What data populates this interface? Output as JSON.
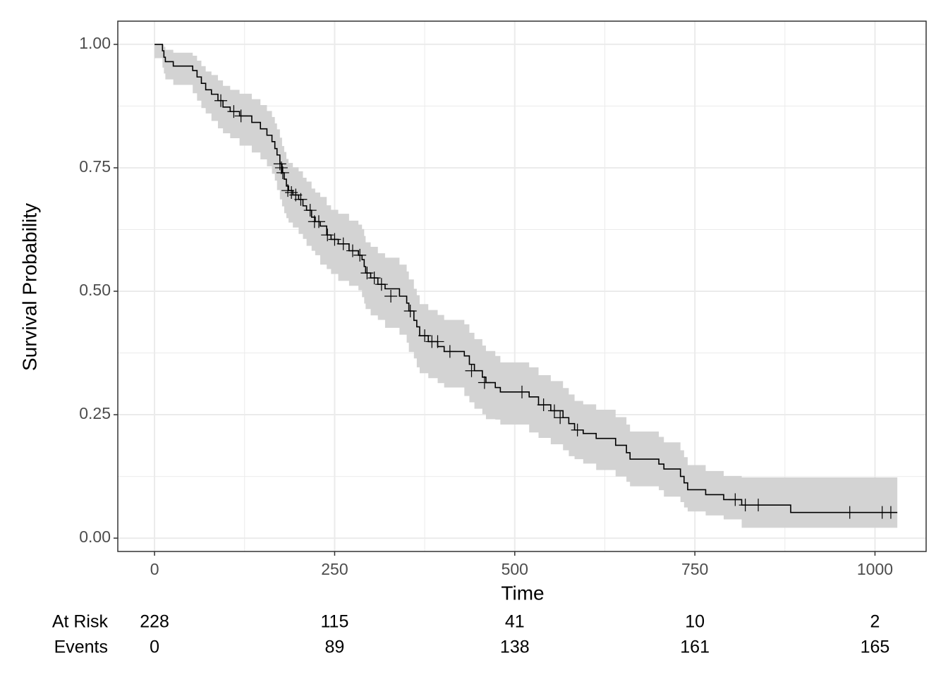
{
  "chart_data": {
    "type": "km",
    "xlabel": "Time",
    "ylabel": "Survival Probability",
    "xlim": [
      -51,
      1071
    ],
    "ylim": [
      -0.027,
      1.047
    ],
    "xticks": [
      0,
      250,
      500,
      750,
      1000
    ],
    "xminor": [
      125,
      375,
      625,
      875
    ],
    "yticks": [
      {
        "value": 0,
        "label": "0.00"
      },
      {
        "value": 0.25,
        "label": "0.25"
      },
      {
        "value": 0.5,
        "label": "0.50"
      },
      {
        "value": 0.75,
        "label": "0.75"
      },
      {
        "value": 1,
        "label": "1.00"
      }
    ],
    "yminor": [
      0.125,
      0.375,
      0.625,
      0.875
    ],
    "grid": true,
    "color": "#000000",
    "band_color": "#d3d3d3",
    "x": [
      0,
      11,
      13,
      15,
      26,
      53,
      59,
      65,
      71,
      79,
      88,
      95,
      105,
      118,
      135,
      147,
      156,
      163,
      167,
      170,
      174,
      177,
      180,
      183,
      186,
      192,
      200,
      206,
      211,
      218,
      223,
      230,
      239,
      245,
      255,
      270,
      283,
      288,
      291,
      293,
      300,
      310,
      320,
      340,
      350,
      353,
      360,
      364,
      368,
      380,
      393,
      402,
      430,
      437,
      444,
      455,
      460,
      473,
      480,
      520,
      533,
      550,
      567,
      575,
      583,
      595,
      613,
      640,
      655,
      660,
      700,
      707,
      730,
      735,
      740,
      765,
      790,
      815,
      883,
      1031
    ],
    "values": [
      1.0,
      0.987,
      0.974,
      0.965,
      0.956,
      0.947,
      0.934,
      0.921,
      0.908,
      0.899,
      0.886,
      0.873,
      0.864,
      0.855,
      0.842,
      0.829,
      0.816,
      0.803,
      0.789,
      0.776,
      0.758,
      0.74,
      0.727,
      0.713,
      0.704,
      0.695,
      0.686,
      0.673,
      0.664,
      0.65,
      0.641,
      0.632,
      0.614,
      0.605,
      0.596,
      0.582,
      0.573,
      0.564,
      0.55,
      0.537,
      0.527,
      0.514,
      0.505,
      0.49,
      0.476,
      0.46,
      0.441,
      0.428,
      0.41,
      0.398,
      0.388,
      0.378,
      0.369,
      0.352,
      0.339,
      0.326,
      0.315,
      0.305,
      0.296,
      0.286,
      0.27,
      0.258,
      0.244,
      0.232,
      0.219,
      0.212,
      0.202,
      0.188,
      0.173,
      0.16,
      0.15,
      0.14,
      0.125,
      0.112,
      0.098,
      0.088,
      0.078,
      0.067,
      0.052,
      0.052
    ],
    "lower": [
      1.0,
      0.972,
      0.953,
      0.941,
      0.929,
      0.918,
      0.901,
      0.886,
      0.871,
      0.86,
      0.845,
      0.83,
      0.82,
      0.81,
      0.795,
      0.781,
      0.767,
      0.753,
      0.738,
      0.724,
      0.705,
      0.686,
      0.672,
      0.658,
      0.648,
      0.639,
      0.629,
      0.616,
      0.606,
      0.592,
      0.582,
      0.573,
      0.554,
      0.545,
      0.535,
      0.521,
      0.511,
      0.502,
      0.488,
      0.475,
      0.464,
      0.451,
      0.442,
      0.426,
      0.412,
      0.396,
      0.377,
      0.364,
      0.346,
      0.334,
      0.324,
      0.314,
      0.305,
      0.288,
      0.275,
      0.262,
      0.251,
      0.241,
      0.24,
      0.23,
      0.214,
      0.203,
      0.19,
      0.178,
      0.166,
      0.16,
      0.151,
      0.138,
      0.125,
      0.114,
      0.105,
      0.097,
      0.084,
      0.073,
      0.062,
      0.054,
      0.046,
      0.038,
      0.021,
      0.021
    ],
    "upper": [
      1.0,
      1.0,
      0.995,
      0.989,
      0.983,
      0.977,
      0.967,
      0.956,
      0.945,
      0.938,
      0.927,
      0.916,
      0.908,
      0.9,
      0.889,
      0.877,
      0.865,
      0.853,
      0.84,
      0.828,
      0.811,
      0.794,
      0.782,
      0.768,
      0.76,
      0.751,
      0.743,
      0.73,
      0.722,
      0.708,
      0.7,
      0.691,
      0.674,
      0.665,
      0.657,
      0.643,
      0.635,
      0.626,
      0.612,
      0.599,
      0.59,
      0.577,
      0.568,
      0.554,
      0.54,
      0.524,
      0.505,
      0.492,
      0.474,
      0.462,
      0.452,
      0.442,
      0.433,
      0.416,
      0.403,
      0.39,
      0.379,
      0.369,
      0.356,
      0.346,
      0.33,
      0.318,
      0.304,
      0.291,
      0.278,
      0.271,
      0.26,
      0.245,
      0.23,
      0.216,
      0.205,
      0.194,
      0.178,
      0.164,
      0.148,
      0.136,
      0.126,
      0.123,
      0.123,
      0.123
    ],
    "censor_x": [
      92,
      110,
      120,
      174,
      176,
      178,
      185,
      190,
      196,
      203,
      216,
      222,
      228,
      240,
      250,
      262,
      275,
      285,
      295,
      305,
      315,
      328,
      355,
      375,
      385,
      393,
      410,
      440,
      458,
      510,
      540,
      555,
      563,
      587,
      806,
      820,
      838,
      965,
      1010,
      1022
    ],
    "censor_y": [
      0.886,
      0.864,
      0.855,
      0.758,
      0.75,
      0.74,
      0.704,
      0.7,
      0.695,
      0.686,
      0.664,
      0.641,
      0.641,
      0.614,
      0.605,
      0.596,
      0.582,
      0.573,
      0.537,
      0.527,
      0.514,
      0.49,
      0.46,
      0.41,
      0.398,
      0.398,
      0.378,
      0.339,
      0.315,
      0.296,
      0.27,
      0.258,
      0.244,
      0.219,
      0.078,
      0.067,
      0.067,
      0.052,
      0.052,
      0.052
    ],
    "risk_times": [
      0,
      250,
      500,
      750,
      1000
    ],
    "risk_table": [
      {
        "label": "At Risk",
        "values": [
          228,
          115,
          41,
          10,
          2
        ]
      },
      {
        "label": "Events",
        "values": [
          0,
          89,
          138,
          161,
          165
        ]
      }
    ]
  }
}
